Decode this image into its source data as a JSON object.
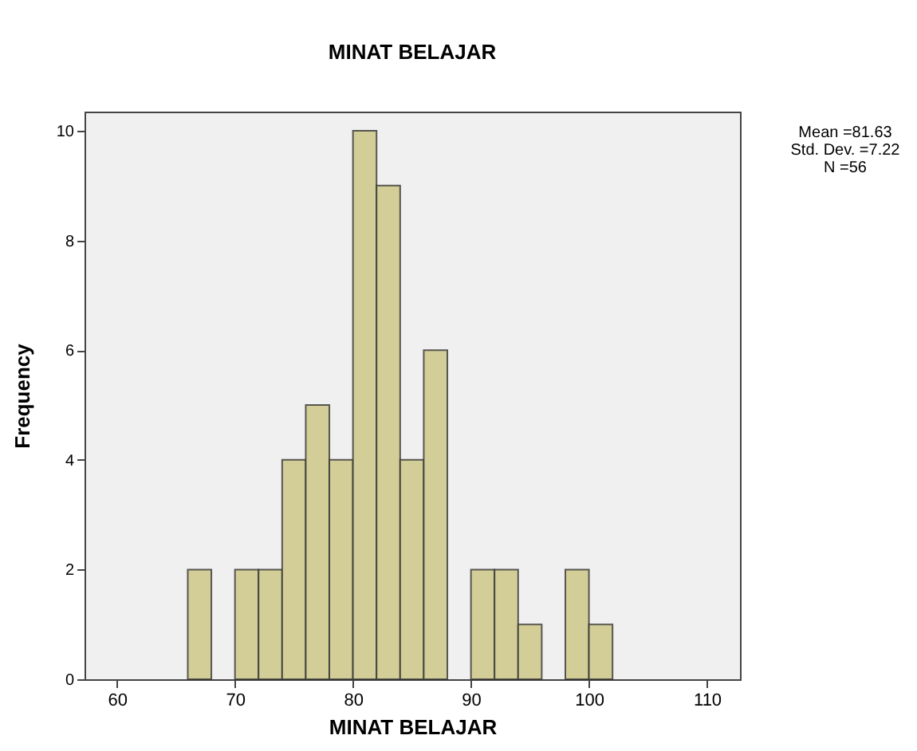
{
  "chart_data": {
    "type": "histogram",
    "title": "MINAT BELAJAR",
    "xlabel": "MINAT BELAJAR",
    "ylabel": "Frequency",
    "annotations": [
      "Mean =81.63",
      "Std. Dev. =7.22",
      "N =56"
    ],
    "bins": [
      66,
      68,
      70,
      72,
      74,
      76,
      78,
      80,
      82,
      84,
      86,
      88,
      90,
      92,
      94,
      96,
      98,
      100,
      102
    ],
    "values": [
      2,
      0,
      2,
      2,
      4,
      5,
      4,
      10,
      9,
      4,
      6,
      0,
      2,
      2,
      1,
      0,
      2,
      1
    ],
    "color": "#d3ce97",
    "xlim": [
      57.25,
      112.8
    ],
    "xticks": [
      60,
      70,
      80,
      90,
      100,
      110
    ],
    "ylim": [
      0,
      10.35
    ],
    "yticks": [
      0,
      2,
      4,
      6,
      8,
      10
    ],
    "grid": false
  }
}
